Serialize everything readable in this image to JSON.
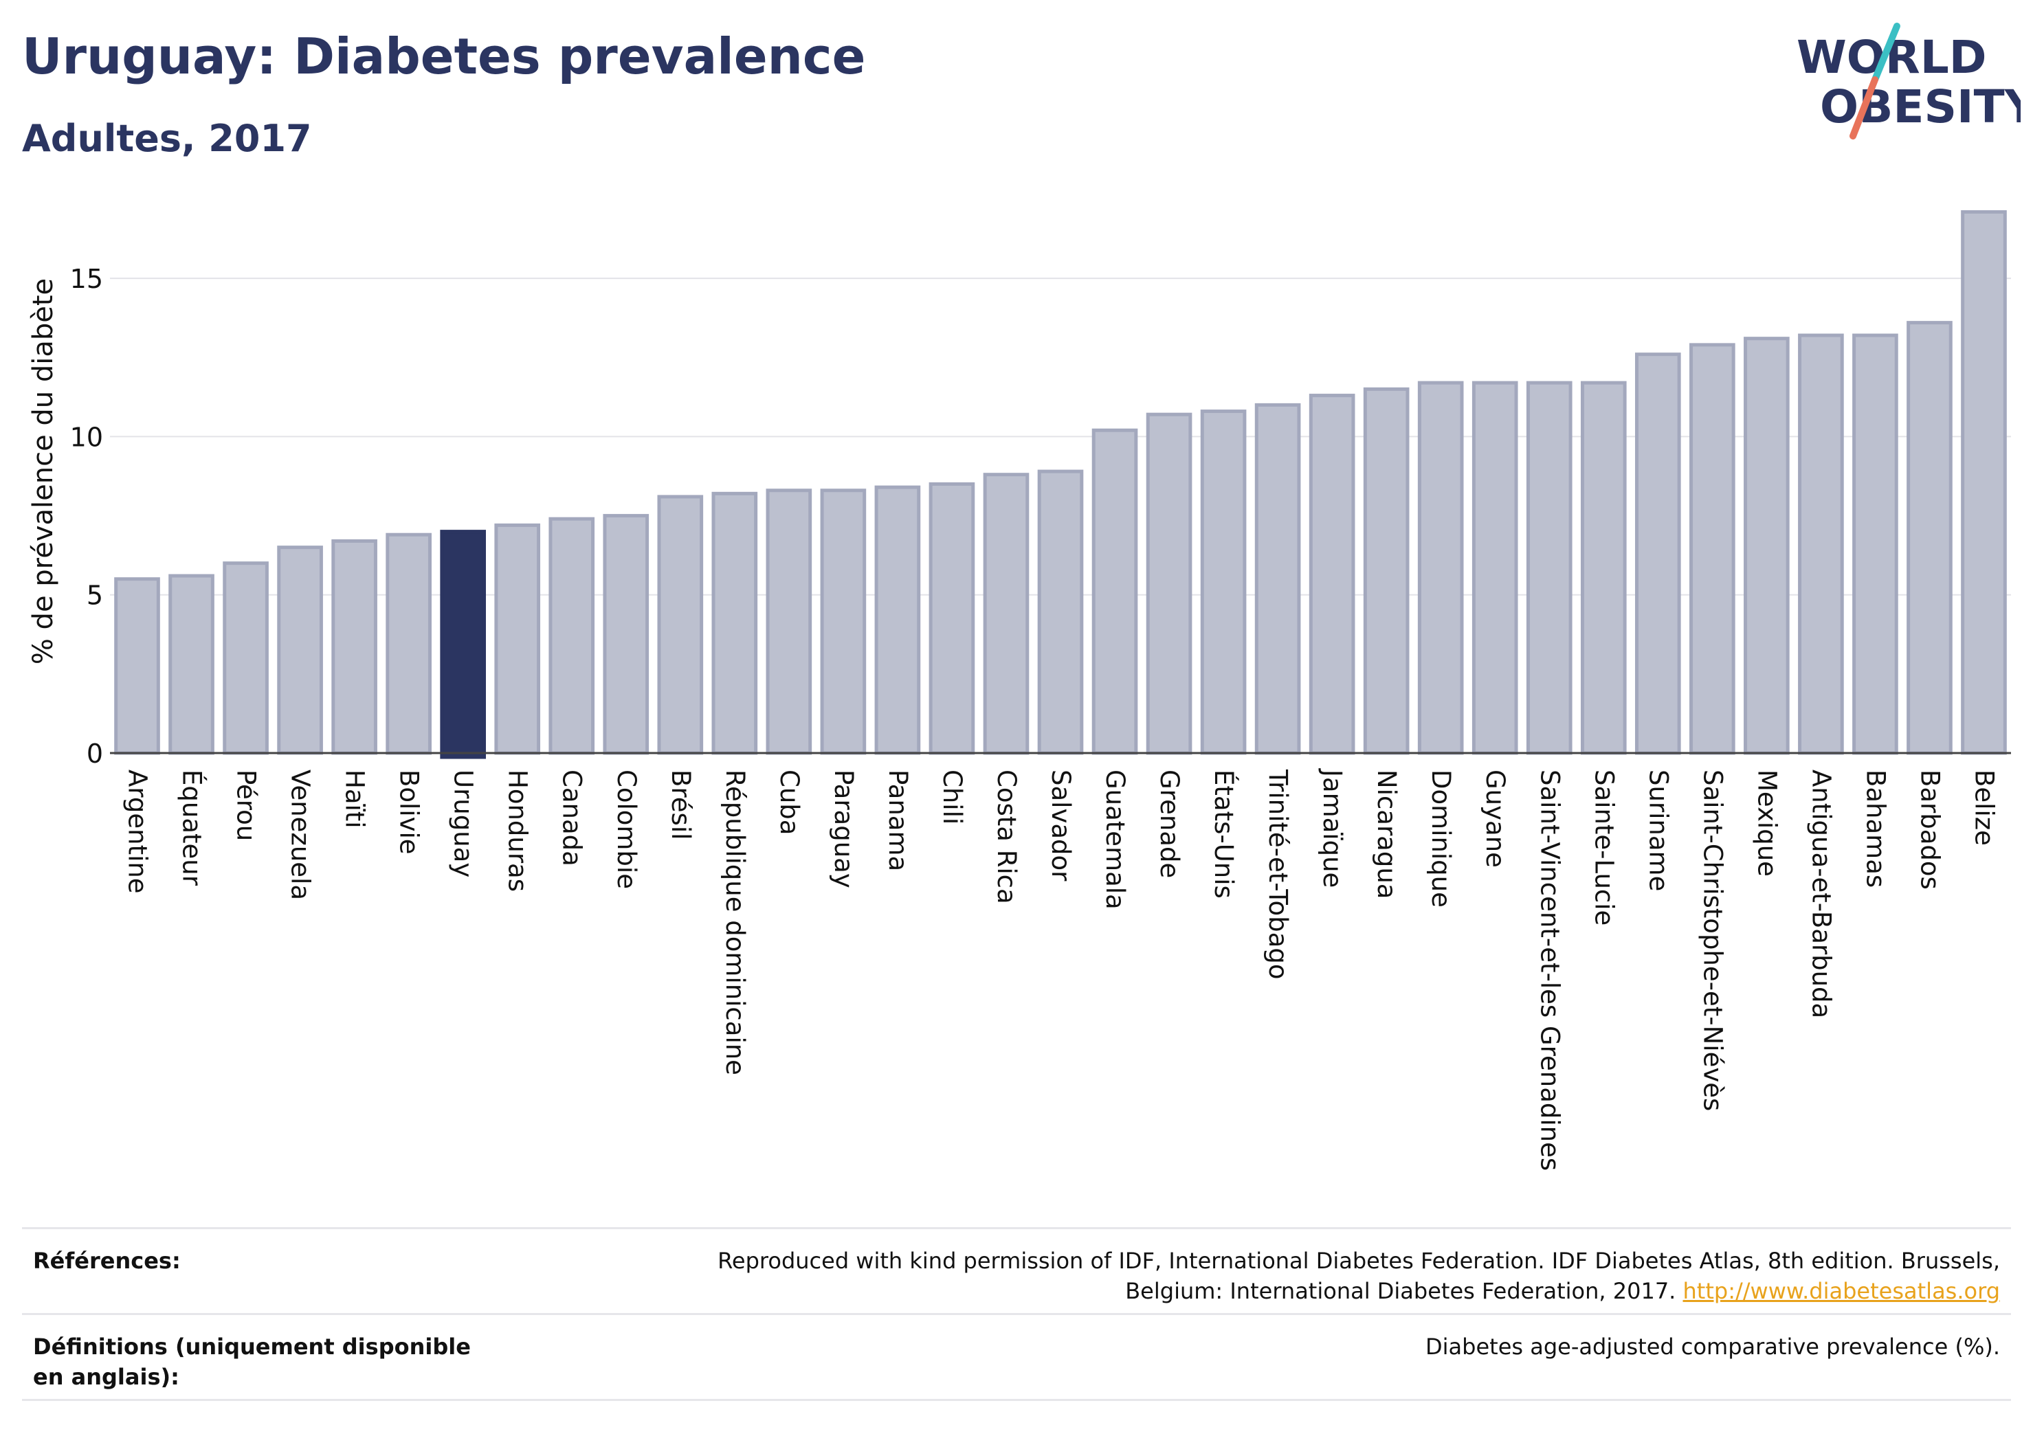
{
  "header": {
    "title": "Uruguay: Diabetes prevalence",
    "subtitle": "Adultes, 2017"
  },
  "logo": {
    "line1": "WORLD",
    "line2": "OBESITY",
    "colors": {
      "text": "#2b3561",
      "slash_top": "#3bbfc4",
      "slash_bottom": "#e8735a"
    }
  },
  "chart_data": {
    "type": "bar",
    "title": "Uruguay: Diabetes prevalence",
    "subtitle": "Adultes, 2017",
    "xlabel": "",
    "ylabel": "% de prévalence du diabète",
    "ylim": [
      0,
      17.5
    ],
    "yticks": [
      0,
      5,
      10,
      15
    ],
    "grid": true,
    "highlight": "Uruguay",
    "colors": {
      "default": "#bcc0cf",
      "default_border": "#a3a8bd",
      "highlight": "#2b3561"
    },
    "categories": [
      "Argentine",
      "Équateur",
      "Pérou",
      "Venezuela",
      "Haïti",
      "Bolivie",
      "Uruguay",
      "Honduras",
      "Canada",
      "Colombie",
      "Brésil",
      "République dominicaine",
      "Cuba",
      "Paraguay",
      "Panama",
      "Chili",
      "Costa Rica",
      "Salvador",
      "Guatemala",
      "Grenade",
      "États-Unis",
      "Trinité-et-Tobago",
      "Jamaïque",
      "Nicaragua",
      "Dominique",
      "Guyane",
      "Saint-Vincent-et-les Grenadines",
      "Sainte-Lucie",
      "Suriname",
      "Saint-Christophe-et-Niévès",
      "Mexique",
      "Antigua-et-Barbuda",
      "Bahamas",
      "Barbados",
      "Belize"
    ],
    "values": [
      5.5,
      5.6,
      6.0,
      6.5,
      6.7,
      6.9,
      7.0,
      7.2,
      7.4,
      7.5,
      8.1,
      8.2,
      8.3,
      8.3,
      8.4,
      8.5,
      8.8,
      8.9,
      10.2,
      10.7,
      10.8,
      11.0,
      11.3,
      11.5,
      11.7,
      11.7,
      11.7,
      11.7,
      12.6,
      12.9,
      13.1,
      13.2,
      13.2,
      13.6,
      17.1
    ]
  },
  "references": {
    "label": "Références:",
    "text": "Reproduced with kind permission of IDF, International Diabetes Federation. IDF Diabetes Atlas, 8th edition. Brussels, Belgium: International Diabetes Federation, 2017.",
    "link": "http://www.diabetesatlas.org"
  },
  "definitions": {
    "label": "Définitions (uniquement disponible en anglais):",
    "text": "Diabetes age-adjusted comparative prevalence (%)."
  }
}
